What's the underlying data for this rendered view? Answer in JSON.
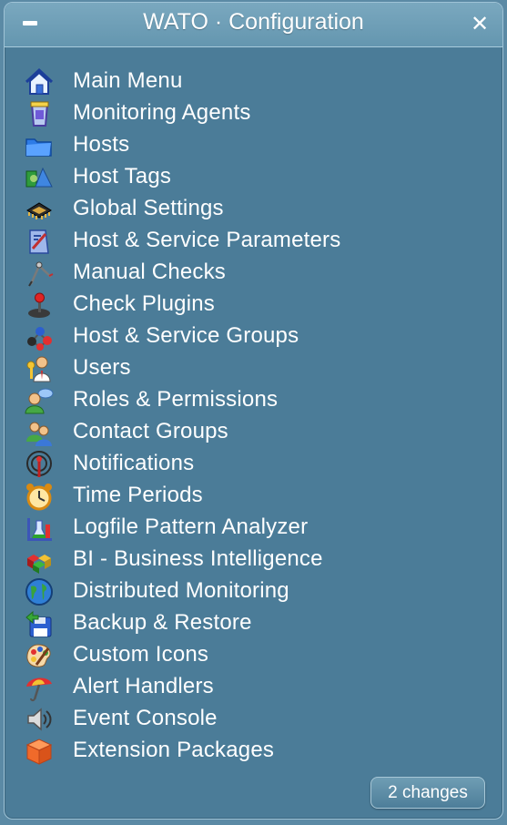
{
  "window": {
    "title": "WATO · Configuration",
    "close_glyph": "✕"
  },
  "menu": [
    {
      "label": "Main Menu",
      "icon": "home-icon"
    },
    {
      "label": "Monitoring Agents",
      "icon": "agent-box-icon"
    },
    {
      "label": "Hosts",
      "icon": "folder-icon"
    },
    {
      "label": "Host Tags",
      "icon": "tags-shapes-icon"
    },
    {
      "label": "Global Settings",
      "icon": "chip-icon"
    },
    {
      "label": "Host & Service Parameters",
      "icon": "parameters-pen-icon"
    },
    {
      "label": "Manual Checks",
      "icon": "compass-icon"
    },
    {
      "label": "Check Plugins",
      "icon": "joystick-icon"
    },
    {
      "label": "Host & Service Groups",
      "icon": "molecule-icon"
    },
    {
      "label": "Users",
      "icon": "users-key-icon"
    },
    {
      "label": "Roles & Permissions",
      "icon": "user-speech-icon"
    },
    {
      "label": "Contact Groups",
      "icon": "contact-group-icon"
    },
    {
      "label": "Notifications",
      "icon": "antenna-icon"
    },
    {
      "label": "Time Periods",
      "icon": "alarm-clock-icon"
    },
    {
      "label": "Logfile Pattern Analyzer",
      "icon": "lab-flask-icon"
    },
    {
      "label": "BI - Business Intelligence",
      "icon": "cubes-icon"
    },
    {
      "label": "Distributed Monitoring",
      "icon": "globe-icon"
    },
    {
      "label": "Backup & Restore",
      "icon": "floppy-icon"
    },
    {
      "label": "Custom Icons",
      "icon": "palette-icon"
    },
    {
      "label": "Alert Handlers",
      "icon": "umbrella-icon"
    },
    {
      "label": "Event Console",
      "icon": "speaker-icon"
    },
    {
      "label": "Extension Packages",
      "icon": "package-cube-icon"
    }
  ],
  "footer": {
    "changes_label": "2 changes"
  },
  "colors": {
    "panel": "#4b7c98",
    "titlebar": "#6f9fb7",
    "text": "#ffffff"
  }
}
